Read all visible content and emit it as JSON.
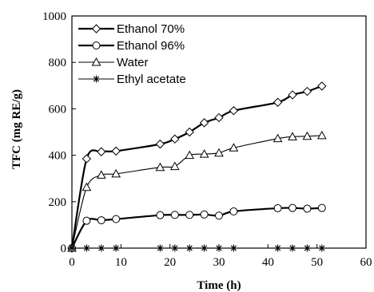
{
  "chart_data": {
    "type": "line",
    "title": "",
    "xlabel": "Time (h)",
    "ylabel": "TFC (mg RE/g)",
    "xlim": [
      0,
      60
    ],
    "ylim": [
      0,
      1000
    ],
    "xticks": [
      0,
      10,
      20,
      30,
      40,
      50,
      60
    ],
    "yticks": [
      0,
      200,
      400,
      600,
      800,
      1000
    ],
    "grid": false,
    "legend_position": "top-left",
    "x": [
      0,
      3,
      6,
      9,
      18,
      21,
      24,
      27,
      30,
      33,
      42,
      45,
      48,
      51
    ],
    "series": [
      {
        "name": "Ethanol 70%",
        "marker": "diamond",
        "line_weight": "thick",
        "values": [
          0,
          385,
          415,
          418,
          448,
          470,
          500,
          540,
          562,
          592,
          628,
          660,
          675,
          698
        ]
      },
      {
        "name": "Ethanol 96%",
        "marker": "circle",
        "line_weight": "thick",
        "values": [
          0,
          118,
          120,
          125,
          142,
          143,
          143,
          145,
          140,
          158,
          172,
          173,
          170,
          173
        ]
      },
      {
        "name": "Water",
        "marker": "triangle",
        "line_weight": "thin",
        "values": [
          0,
          262,
          315,
          320,
          348,
          352,
          400,
          405,
          410,
          432,
          472,
          480,
          482,
          485
        ]
      },
      {
        "name": "Ethyl acetate",
        "marker": "asterisk",
        "line_weight": "thin",
        "values": [
          0,
          0,
          0,
          0,
          0,
          0,
          0,
          0,
          0,
          0,
          0,
          0,
          0,
          0
        ]
      }
    ]
  },
  "colors": {
    "line": "#000000",
    "marker_fill": "#ffffff",
    "background": "#ffffff"
  }
}
